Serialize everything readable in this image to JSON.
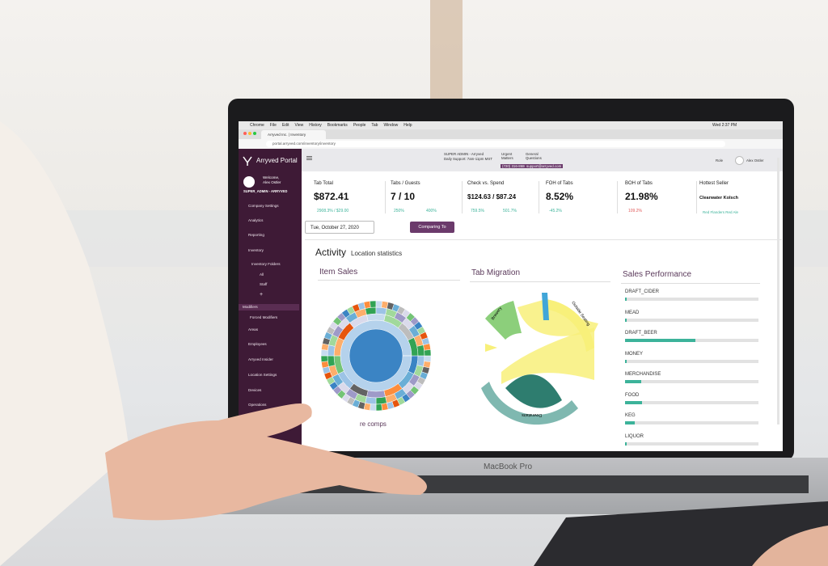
{
  "menu_bar": {
    "items": [
      "Chrome",
      "File",
      "Edit",
      "View",
      "History",
      "Bookmarks",
      "People",
      "Tab",
      "Window",
      "Help"
    ],
    "clock": "Wed 2:37 PM"
  },
  "browser": {
    "tab_title": "Arryved Inc. | Inventory",
    "url": "portal.arryved.com/inventory/inventory"
  },
  "sidebar": {
    "brand": "Arryved Portal",
    "welcome": "Welcome,",
    "user": "Alex Ostler",
    "role": "SUPER_ADMIN - ARRYVED",
    "items": [
      "Company Settings",
      "Analytics",
      "Reporting",
      "Inventory",
      "Inventory Folders",
      "All",
      "Staff",
      "+",
      "Modifiers",
      "Forced Modifiers",
      "Areas",
      "Employees",
      "Arryved Insider",
      "Location Settings",
      "Devices",
      "Operations"
    ]
  },
  "header": {
    "admin": "SUPER ADMIN - Arryved",
    "support": "Daily Support: 7am-11pm MST",
    "urgent": "Urgent Matters",
    "phone": "(720) 316-8680",
    "general": "General Questions",
    "email": "support@arryved.com",
    "role_menu": "Role",
    "user_menu": "Alex Ostler"
  },
  "stats": [
    {
      "label": "Tab Total",
      "value": "$872.41",
      "changes": [
        "2908.3% / $29.00"
      ]
    },
    {
      "label": "Tabs / Guests",
      "value": "7 / 10",
      "changes": [
        "250%",
        "400%"
      ]
    },
    {
      "label": "Check vs. Spend",
      "value": "$124.63 / $87.24",
      "changes": [
        "759.5%",
        "501.7%"
      ]
    },
    {
      "label": "FOH of Tabs",
      "value": "8.52%",
      "changes": [
        "-45.2%"
      ]
    },
    {
      "label": "BOH of Tabs",
      "value": "21.98%",
      "changes": [
        "109.2%"
      ]
    },
    {
      "label": "Hottest Seller",
      "value": "Clearwater Kolsch",
      "changes": [
        "Red Flanders Red Ale"
      ]
    }
  ],
  "date": "Tue, October 27, 2020",
  "compare_button": "Comparing To",
  "activity": {
    "title": "Activity",
    "subtitle": "Location statistics"
  },
  "panels": {
    "item_sales": "Item Sales",
    "tab_migration": "Tab Migration",
    "sales_performance": "Sales Performance",
    "item_sales_footer": "re comps"
  },
  "chord_labels": [
    "Brewery",
    "Outside Seating",
    "Downstairs"
  ],
  "sales_performance": {
    "range": [
      0,
      100
    ],
    "color": "#3cb39a",
    "categories": [
      "DRAFT_CIDER",
      "MEAD",
      "DRAFT_BEER",
      "MONEY",
      "MERCHANDISE",
      "FOOD",
      "KEG",
      "LIQUOR"
    ],
    "values": [
      1,
      1,
      53,
      1,
      12,
      13,
      7,
      1
    ]
  },
  "laptop_label": "MacBook Pro"
}
